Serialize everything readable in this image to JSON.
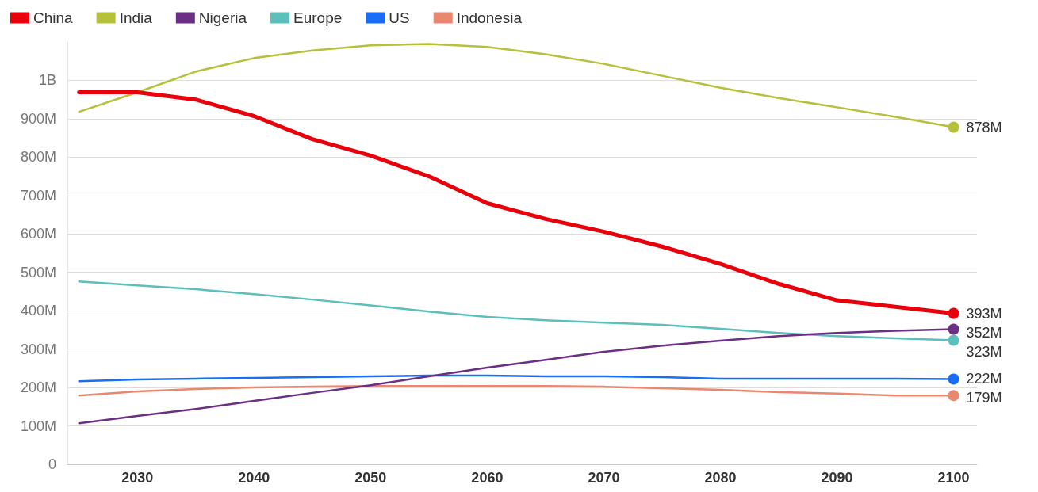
{
  "chart_data": {
    "type": "line",
    "x": [
      2025,
      2030,
      2035,
      2040,
      2045,
      2050,
      2055,
      2060,
      2065,
      2070,
      2075,
      2080,
      2085,
      2090,
      2095,
      2100
    ],
    "series": [
      {
        "name": "China",
        "color": "#e8000b",
        "values": [
          969000000,
          969000000,
          950000000,
          907000000,
          847000000,
          804000000,
          750000000,
          680000000,
          639000000,
          606000000,
          567000000,
          522000000,
          470000000,
          427000000,
          410000000,
          393000000
        ],
        "value_labels": [
          null,
          null,
          null,
          null,
          null,
          null,
          null,
          null,
          null,
          null,
          null,
          null,
          null,
          null,
          null,
          "393M"
        ]
      },
      {
        "name": "India",
        "color": "#b5c13a",
        "values": [
          918000000,
          969000000,
          1023000000,
          1058000000,
          1078000000,
          1091000000,
          1095000000,
          1087000000,
          1068000000,
          1043000000,
          1012000000,
          981000000,
          954000000,
          930000000,
          905000000,
          878000000
        ],
        "value_labels": [
          null,
          null,
          null,
          null,
          null,
          null,
          null,
          null,
          null,
          null,
          null,
          null,
          null,
          null,
          null,
          "878M"
        ]
      },
      {
        "name": "Nigeria",
        "color": "#6b2f86",
        "values": [
          107000000,
          126000000,
          144000000,
          165000000,
          186000000,
          206000000,
          229000000,
          252000000,
          272000000,
          293000000,
          309000000,
          322000000,
          334000000,
          342000000,
          348000000,
          352000000
        ],
        "value_labels": [
          null,
          null,
          null,
          null,
          null,
          null,
          null,
          null,
          null,
          null,
          null,
          null,
          null,
          null,
          null,
          "352M"
        ]
      },
      {
        "name": "Europe",
        "color": "#5bbfbb",
        "values": [
          476000000,
          466000000,
          456000000,
          443000000,
          429000000,
          414000000,
          398000000,
          384000000,
          375000000,
          369000000,
          363000000,
          353000000,
          342000000,
          334000000,
          328000000,
          323000000
        ],
        "value_labels": [
          null,
          null,
          null,
          null,
          null,
          null,
          null,
          null,
          null,
          null,
          null,
          null,
          null,
          null,
          null,
          "323M"
        ]
      },
      {
        "name": "US",
        "color": "#1a6ef5",
        "values": [
          216000000,
          221000000,
          223000000,
          225000000,
          227000000,
          229000000,
          231000000,
          231000000,
          229000000,
          229000000,
          227000000,
          223000000,
          223000000,
          223000000,
          223000000,
          222000000
        ],
        "value_labels": [
          null,
          null,
          null,
          null,
          null,
          null,
          null,
          null,
          null,
          null,
          null,
          null,
          null,
          null,
          null,
          "222M"
        ]
      },
      {
        "name": "Indonesia",
        "color": "#e9876f",
        "values": [
          179000000,
          190000000,
          196000000,
          200000000,
          202000000,
          204000000,
          204000000,
          204000000,
          204000000,
          202000000,
          198000000,
          194000000,
          188000000,
          184000000,
          179000000,
          179000000
        ],
        "value_labels": [
          null,
          null,
          null,
          null,
          null,
          null,
          null,
          null,
          null,
          null,
          null,
          null,
          null,
          null,
          null,
          "179M"
        ]
      }
    ],
    "xlim": [
      2024,
      2102
    ],
    "xticks": [
      2030,
      2040,
      2050,
      2060,
      2070,
      2080,
      2090,
      2100
    ],
    "ylim": [
      0,
      1100000000
    ],
    "yticks": [
      0,
      {
        "value": 100000000,
        "label": "100M"
      },
      {
        "value": 200000000,
        "label": "200M"
      },
      {
        "value": 300000000,
        "label": "300M"
      },
      {
        "value": 400000000,
        "label": "400M"
      },
      {
        "value": 500000000,
        "label": "500M"
      },
      {
        "value": 600000000,
        "label": "600M"
      },
      {
        "value": 700000000,
        "label": "700M"
      },
      {
        "value": 800000000,
        "label": "800M"
      },
      {
        "value": 900000000,
        "label": "900M"
      },
      {
        "value": 1000000000,
        "label": "1B"
      }
    ],
    "grid": "y",
    "legend": "top left",
    "line_style": "solid"
  }
}
